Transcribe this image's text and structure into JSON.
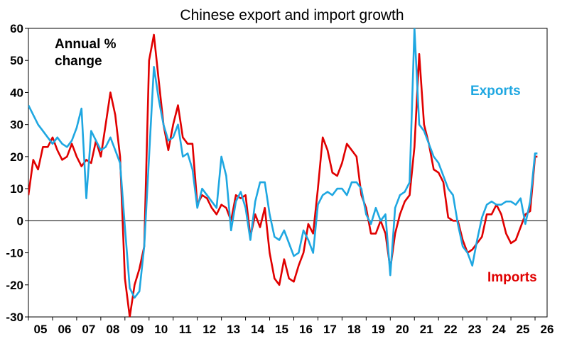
{
  "chart_data": {
    "type": "line",
    "title": "Chinese export and import growth",
    "annotation_lines": [
      "Annual %",
      "change"
    ],
    "xlabel": "",
    "ylabel": "",
    "ylim": [
      -30,
      60
    ],
    "xlim": [
      2005,
      2026.5
    ],
    "yticks": [
      60,
      50,
      40,
      30,
      20,
      10,
      0,
      -10,
      -20,
      -30
    ],
    "xtick_labels": [
      "05",
      "06",
      "07",
      "08",
      "09",
      "10",
      "11",
      "12",
      "13",
      "14",
      "15",
      "16",
      "17",
      "18",
      "19",
      "20",
      "21",
      "22",
      "23",
      "24",
      "25",
      "26"
    ],
    "xtick_years": [
      2005,
      2006,
      2007,
      2008,
      2009,
      2010,
      2011,
      2012,
      2013,
      2014,
      2015,
      2016,
      2017,
      2018,
      2019,
      2020,
      2021,
      2022,
      2023,
      2024,
      2025,
      2026
    ],
    "grid": false,
    "legend": "none",
    "series": [
      {
        "name": "Exports",
        "color": "#1fa7e1",
        "x": [
          2005.0,
          2005.2,
          2005.4,
          2005.6,
          2005.8,
          2006.0,
          2006.2,
          2006.4,
          2006.6,
          2006.8,
          2007.0,
          2007.2,
          2007.4,
          2007.6,
          2007.8,
          2008.0,
          2008.2,
          2008.4,
          2008.6,
          2008.8,
          2009.0,
          2009.2,
          2009.4,
          2009.6,
          2009.8,
          2010.0,
          2010.2,
          2010.4,
          2010.6,
          2010.8,
          2011.0,
          2011.2,
          2011.4,
          2011.6,
          2011.8,
          2012.0,
          2012.2,
          2012.4,
          2012.6,
          2012.8,
          2013.0,
          2013.2,
          2013.4,
          2013.6,
          2013.8,
          2014.0,
          2014.2,
          2014.4,
          2014.6,
          2014.8,
          2015.0,
          2015.2,
          2015.4,
          2015.6,
          2015.8,
          2016.0,
          2016.2,
          2016.4,
          2016.6,
          2016.8,
          2017.0,
          2017.2,
          2017.4,
          2017.6,
          2017.8,
          2018.0,
          2018.2,
          2018.4,
          2018.6,
          2018.8,
          2019.0,
          2019.2,
          2019.4,
          2019.6,
          2019.8,
          2020.0,
          2020.2,
          2020.4,
          2020.6,
          2020.8,
          2021.0,
          2021.2,
          2021.4,
          2021.6,
          2021.8,
          2022.0,
          2022.2,
          2022.4,
          2022.6,
          2022.8,
          2023.0,
          2023.2,
          2023.4,
          2023.6,
          2023.8,
          2024.0,
          2024.2,
          2024.4,
          2024.6,
          2024.8,
          2025.0,
          2025.2,
          2025.4,
          2025.6,
          2025.8,
          2026.0,
          2026.1
        ],
        "values": [
          36,
          33,
          30,
          28,
          26,
          24,
          26,
          24,
          23,
          25,
          29,
          35,
          7,
          28,
          25,
          22,
          23,
          26,
          22,
          18,
          -2,
          -21,
          -24,
          -22,
          -8,
          20,
          48,
          38,
          30,
          25,
          26,
          30,
          20,
          21,
          16,
          4,
          10,
          8,
          6,
          4,
          20,
          14,
          -3,
          6,
          9,
          4,
          -6,
          6,
          12,
          12,
          2,
          -5,
          -6,
          -3,
          -7,
          -11,
          -10,
          -3,
          -6,
          -10,
          5,
          8,
          9,
          8,
          10,
          10,
          8,
          12,
          12,
          10,
          2,
          -1,
          4,
          0,
          2,
          -17,
          4,
          8,
          9,
          12,
          60,
          30,
          28,
          24,
          20,
          18,
          14,
          10,
          8,
          -1,
          -8,
          -10,
          -14,
          -6,
          1,
          5,
          6,
          5,
          5,
          6,
          6,
          5,
          7,
          -1,
          6,
          21,
          21
        ]
      },
      {
        "name": "Imports",
        "color": "#e00000",
        "x": [
          2005.0,
          2005.2,
          2005.4,
          2005.6,
          2005.8,
          2006.0,
          2006.2,
          2006.4,
          2006.6,
          2006.8,
          2007.0,
          2007.2,
          2007.4,
          2007.6,
          2007.8,
          2008.0,
          2008.2,
          2008.4,
          2008.6,
          2008.8,
          2009.0,
          2009.2,
          2009.4,
          2009.6,
          2009.8,
          2010.0,
          2010.2,
          2010.4,
          2010.6,
          2010.8,
          2011.0,
          2011.2,
          2011.4,
          2011.6,
          2011.8,
          2012.0,
          2012.2,
          2012.4,
          2012.6,
          2012.8,
          2013.0,
          2013.2,
          2013.4,
          2013.6,
          2013.8,
          2014.0,
          2014.2,
          2014.4,
          2014.6,
          2014.8,
          2015.0,
          2015.2,
          2015.4,
          2015.6,
          2015.8,
          2016.0,
          2016.2,
          2016.4,
          2016.6,
          2016.8,
          2017.0,
          2017.2,
          2017.4,
          2017.6,
          2017.8,
          2018.0,
          2018.2,
          2018.4,
          2018.6,
          2018.8,
          2019.0,
          2019.2,
          2019.4,
          2019.6,
          2019.8,
          2020.0,
          2020.2,
          2020.4,
          2020.6,
          2020.8,
          2021.0,
          2021.2,
          2021.4,
          2021.6,
          2021.8,
          2022.0,
          2022.2,
          2022.4,
          2022.6,
          2022.8,
          2023.0,
          2023.2,
          2023.4,
          2023.6,
          2023.8,
          2024.0,
          2024.2,
          2024.4,
          2024.6,
          2024.8,
          2025.0,
          2025.2,
          2025.4,
          2025.6,
          2025.8,
          2026.0,
          2026.1
        ],
        "values": [
          8,
          19,
          16,
          23,
          23,
          26,
          22,
          19,
          20,
          24,
          20,
          17,
          19,
          18,
          25,
          20,
          30,
          40,
          33,
          20,
          -18,
          -30,
          -20,
          -15,
          -8,
          50,
          58,
          44,
          30,
          22,
          30,
          36,
          26,
          24,
          24,
          5,
          8,
          7,
          4,
          2,
          5,
          4,
          0,
          8,
          7,
          8,
          -5,
          2,
          -2,
          4,
          -10,
          -18,
          -20,
          -12,
          -18,
          -19,
          -14,
          -10,
          -1,
          -4,
          10,
          26,
          22,
          15,
          14,
          18,
          24,
          22,
          20,
          8,
          4,
          -4,
          -4,
          0,
          -4,
          -15,
          -4,
          2,
          6,
          8,
          23,
          52,
          30,
          24,
          16,
          15,
          12,
          1,
          0,
          0,
          -6,
          -10,
          -9,
          -7,
          -5,
          2,
          2,
          5,
          2,
          -4,
          -7,
          -6,
          -2,
          2,
          3,
          20,
          20
        ]
      }
    ]
  },
  "labels": {
    "exports": "Exports",
    "imports": "Imports"
  }
}
